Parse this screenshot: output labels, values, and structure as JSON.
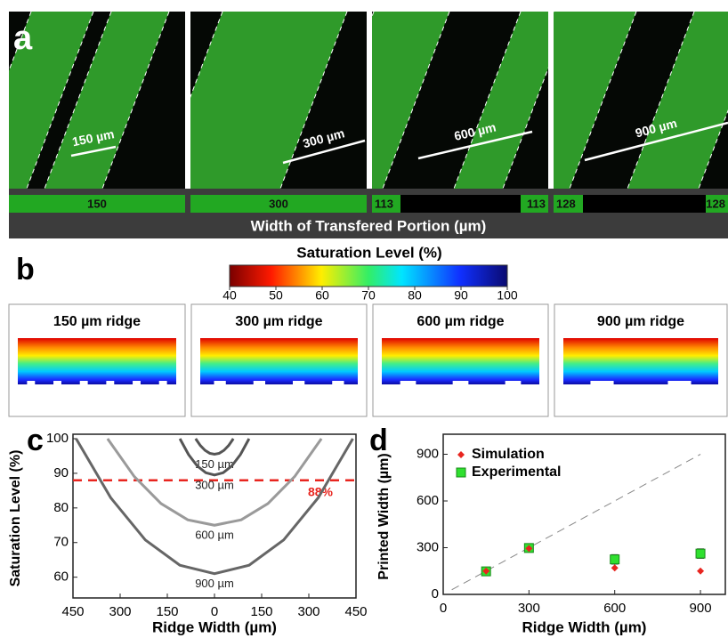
{
  "panel_a": {
    "label": "a",
    "images": [
      {
        "scale_label": "150 µm",
        "transfer_labels": [
          "150"
        ]
      },
      {
        "scale_label": "300 µm",
        "transfer_labels": [
          "300"
        ]
      },
      {
        "scale_label": "600 µm",
        "transfer_labels": [
          "113",
          "113"
        ]
      },
      {
        "scale_label": "900 µm",
        "transfer_labels": [
          "128",
          "128"
        ]
      }
    ],
    "axis_title": "Width of Transfered Portion (µm)"
  },
  "panel_b": {
    "label": "b",
    "colorbar_title": "Saturation Level (%)",
    "colorbar_ticks": [
      40,
      50,
      60,
      70,
      80,
      90,
      100
    ],
    "panel_titles": [
      "150 µm ridge",
      "300 µm ridge",
      "600 µm ridge",
      "900 µm ridge"
    ]
  },
  "chart_data": [
    {
      "type": "line",
      "panel_label": "c",
      "xlabel": "Ridge Width (µm)",
      "ylabel": "Saturation Level (%)",
      "xlim": [
        -450,
        450
      ],
      "ylim": [
        54,
        100
      ],
      "xticks": [
        {
          "value": -450,
          "label": "450"
        },
        {
          "value": -300,
          "label": "300"
        },
        {
          "value": -150,
          "label": "150"
        },
        0,
        150,
        300,
        450
      ],
      "yticks": [
        60,
        70,
        80,
        90,
        100
      ],
      "threshold": {
        "value": 88,
        "label": "88%",
        "color": "#e8251f"
      },
      "series": [
        {
          "name": "150 µm",
          "color": "#555555",
          "x": [
            -60,
            -45,
            -30,
            -15,
            0,
            15,
            30,
            45,
            60
          ],
          "values": [
            100,
            98.03,
            96.63,
            95.78,
            95.5,
            95.78,
            96.63,
            98.03,
            100
          ]
        },
        {
          "name": "300 µm",
          "color": "#555555",
          "x": [
            -110,
            -82.5,
            -55,
            -27.5,
            0,
            27.5,
            55,
            82.5,
            110
          ],
          "values": [
            100,
            95.41,
            92.13,
            90.16,
            89.5,
            90.16,
            92.13,
            95.41,
            100
          ]
        },
        {
          "name": "600 µm",
          "color": "#9a9a9a",
          "x": [
            -340,
            -255,
            -170,
            -85,
            0,
            85,
            170,
            255,
            340
          ],
          "values": [
            100,
            89.06,
            81.25,
            76.56,
            75,
            76.56,
            81.25,
            89.06,
            100
          ]
        },
        {
          "name": "900 µm",
          "color": "#666666",
          "x": [
            -440,
            -330,
            -220,
            -110,
            0,
            110,
            220,
            330,
            440
          ],
          "values": [
            100,
            82.94,
            70.75,
            63.44,
            61,
            63.44,
            70.75,
            82.94,
            100
          ]
        }
      ]
    },
    {
      "type": "scatter",
      "panel_label": "d",
      "xlabel": "Ridge Width (µm)",
      "ylabel": "Printed Width (µm)",
      "xlim": [
        0,
        987
      ],
      "ylim": [
        0,
        1000
      ],
      "xticks": [
        0,
        300,
        600,
        900
      ],
      "yticks": [
        0,
        300,
        600,
        900
      ],
      "legend": "top-left",
      "reference_line": {
        "x": [
          30,
          900
        ],
        "values": [
          30,
          900
        ]
      },
      "series": [
        {
          "name": "Simulation",
          "color": "#e8251f",
          "marker": "diamond",
          "x": [
            150,
            300,
            600,
            900
          ],
          "values": [
            150,
            295,
            170,
            150
          ]
        },
        {
          "name": "Experimental",
          "color": "#2fe02f",
          "marker": "square",
          "x": [
            150,
            300,
            600,
            900
          ],
          "values": [
            148,
            298,
            225,
            262
          ],
          "errors": [
            10,
            15,
            30,
            30
          ]
        }
      ]
    }
  ]
}
